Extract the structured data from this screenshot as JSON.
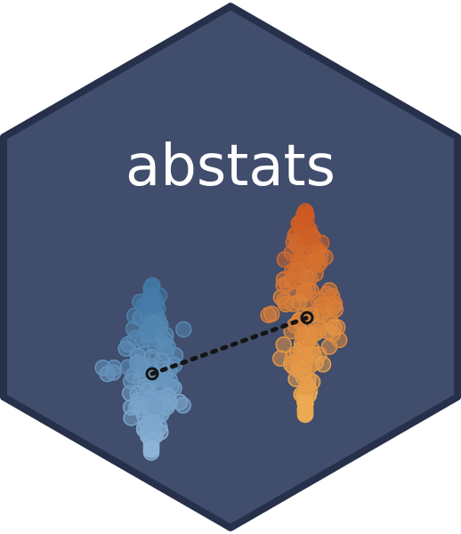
{
  "logo": {
    "title": "abstats"
  },
  "colors": {
    "hex_fill": "#404d6c",
    "hex_border": "#27304a",
    "title_text": "#ffffff",
    "group_a_dark": "#3e76a4",
    "group_a_light": "#8fb4d8",
    "group_b_dark": "#cc5a22",
    "group_b_light": "#edae55",
    "center_marker": "#141414"
  }
}
